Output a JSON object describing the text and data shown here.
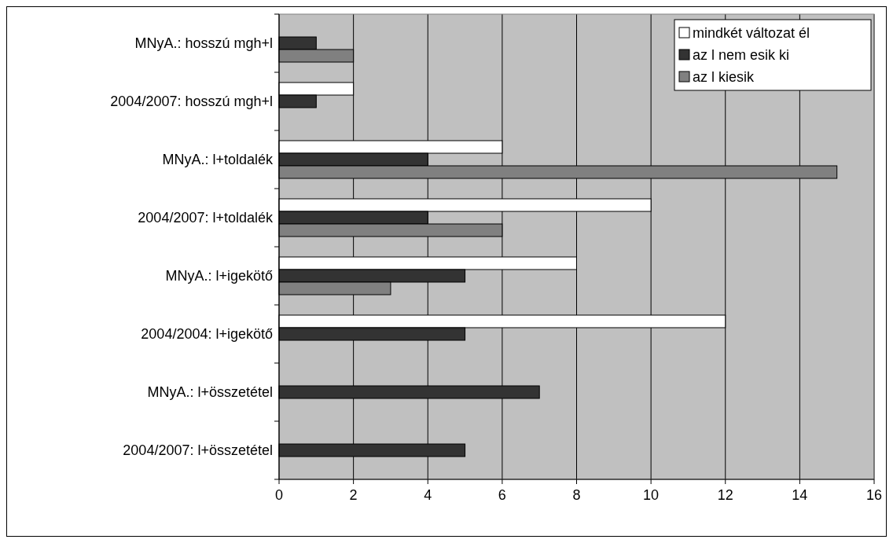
{
  "chart_data": {
    "type": "bar",
    "orientation": "horizontal",
    "categories": [
      "MNyA.: hosszú mgh+l",
      "2004/2007: hosszú mgh+l",
      "MNyA.: l+toldalék",
      "2004/2007: l+toldalék",
      "MNyA.: l+igekötő",
      "2004/2004: l+igekötő",
      "MNyA.: l+összetétel",
      "2004/2007: l+összetétel"
    ],
    "series": [
      {
        "name": "mindkét változat él",
        "color": "#ffffff",
        "values": [
          null,
          2,
          6,
          10,
          8,
          12,
          null,
          null
        ]
      },
      {
        "name": "az l nem esik ki",
        "color": "#333333",
        "values": [
          1,
          1,
          4,
          4,
          5,
          5,
          7,
          5
        ]
      },
      {
        "name": "az l kiesik",
        "color": "#808080",
        "values": [
          2,
          null,
          15,
          6,
          3,
          null,
          null,
          null
        ]
      }
    ],
    "xlim": [
      0,
      16
    ],
    "xticks": [
      0,
      2,
      4,
      6,
      8,
      10,
      12,
      14,
      16
    ],
    "grid": "x",
    "legend": "top right"
  }
}
